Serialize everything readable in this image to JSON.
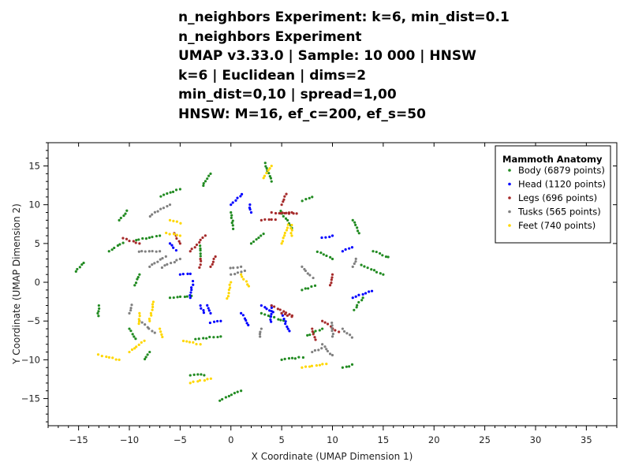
{
  "chart_data": {
    "type": "scatter",
    "title_lines": [
      "n_neighbors Experiment: k=6, min_dist=0.1",
      "n_neighbors Experiment",
      "UMAP v3.33.0 | Sample: 10 000 | HNSW",
      "k=6 | Euclidean | dims=2",
      "min_dist=0,10 | spread=1,00",
      "HNSW: M=16, ef_c=200, ef_s=50"
    ],
    "xlabel": "X Coordinate (UMAP Dimension 1)",
    "ylabel": "Y Coordinate (UMAP Dimension 2)",
    "xlim": [
      -18,
      38
    ],
    "ylim": [
      -18.5,
      18
    ],
    "xticks": [
      -15,
      -10,
      -5,
      0,
      5,
      10,
      15,
      20,
      25,
      30,
      35
    ],
    "yticks": [
      -15,
      -10,
      -5,
      0,
      5,
      10,
      15
    ],
    "grid": false,
    "legend": {
      "title": "Mammoth Anatomy",
      "position": "top-right"
    },
    "series": [
      {
        "name": "Body",
        "label": "Body (6879 points)",
        "color": "#228b22",
        "points": [
          [
            -14.5,
            2.5
          ],
          [
            -13,
            -3
          ],
          [
            -12,
            4
          ],
          [
            -11,
            8
          ],
          [
            -10,
            -6
          ],
          [
            -9,
            1
          ],
          [
            -8,
            -9
          ],
          [
            -7,
            6
          ],
          [
            -6,
            -2
          ],
          [
            -5,
            12
          ],
          [
            -4,
            -12
          ],
          [
            -3,
            3
          ],
          [
            -2,
            14
          ],
          [
            -1,
            -7
          ],
          [
            0,
            9
          ],
          [
            1,
            -14
          ],
          [
            2,
            5
          ],
          [
            3,
            -4
          ],
          [
            4,
            13
          ],
          [
            5,
            -10
          ],
          [
            6,
            7
          ],
          [
            7,
            -1
          ],
          [
            8,
            11
          ],
          [
            9,
            -6
          ],
          [
            10,
            3
          ],
          [
            11,
            -11
          ],
          [
            12,
            8
          ],
          [
            13,
            -2
          ],
          [
            14,
            4
          ],
          [
            15,
            1
          ]
        ]
      },
      {
        "name": "Head",
        "label": "Head (1120 points)",
        "color": "#0000ff",
        "points": [
          [
            -6,
            5
          ],
          [
            -5,
            1
          ],
          [
            -4,
            -2
          ],
          [
            -3,
            -3
          ],
          [
            -2,
            -4
          ],
          [
            -1,
            -5
          ],
          [
            0,
            10
          ],
          [
            1,
            -4
          ],
          [
            2,
            9
          ],
          [
            3,
            -3
          ],
          [
            4,
            -3
          ],
          [
            5,
            -4
          ],
          [
            10,
            6
          ],
          [
            11,
            4
          ],
          [
            12,
            -2
          ]
        ]
      },
      {
        "name": "Legs",
        "label": "Legs (696 points)",
        "color": "#a52a2a",
        "points": [
          [
            -5,
            5
          ],
          [
            -4,
            4
          ],
          [
            -3,
            3
          ],
          [
            -2,
            2
          ],
          [
            -9,
            5
          ],
          [
            3,
            8
          ],
          [
            4,
            9
          ],
          [
            5,
            10
          ],
          [
            6,
            9
          ],
          [
            4,
            -3
          ],
          [
            5,
            -4
          ],
          [
            8,
            -6
          ],
          [
            9,
            -5
          ],
          [
            10,
            1
          ]
        ]
      },
      {
        "name": "Tusks",
        "label": "Tusks (565 points)",
        "color": "#808080",
        "points": [
          [
            -10,
            -4
          ],
          [
            -9,
            -5
          ],
          [
            -8,
            2
          ],
          [
            -7,
            4
          ],
          [
            -6,
            10
          ],
          [
            -5,
            3
          ],
          [
            0,
            1
          ],
          [
            1,
            2
          ],
          [
            3,
            -6
          ],
          [
            7,
            2
          ],
          [
            8,
            -9
          ],
          [
            9,
            -8
          ],
          [
            10,
            -7
          ],
          [
            11,
            -6
          ],
          [
            12,
            2
          ]
        ]
      },
      {
        "name": "Feet",
        "label": "Feet (740 points)",
        "color": "#ffd700",
        "points": [
          [
            -11,
            -10
          ],
          [
            -10,
            -9
          ],
          [
            -9,
            -4
          ],
          [
            -8,
            -5
          ],
          [
            -7,
            -6
          ],
          [
            -6,
            8
          ],
          [
            -5,
            6
          ],
          [
            -4,
            -13
          ],
          [
            -3,
            -8
          ],
          [
            0,
            0
          ],
          [
            1,
            1
          ],
          [
            4,
            15
          ],
          [
            5,
            5
          ],
          [
            6,
            6
          ],
          [
            7,
            -11
          ]
        ]
      }
    ]
  }
}
